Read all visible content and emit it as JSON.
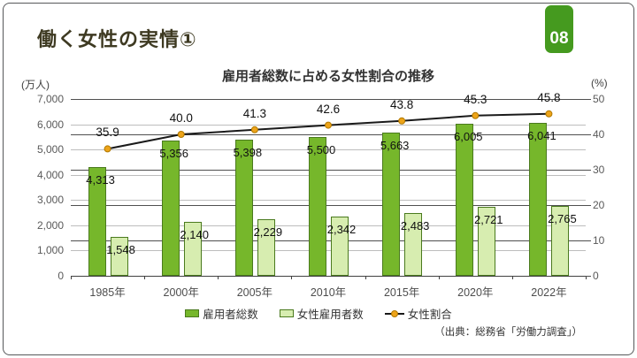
{
  "page": {
    "title": "働く女性の実情①",
    "page_number": "08",
    "source": "（出典：総務省「労働力調査」）"
  },
  "colors": {
    "badge_green": "#459a1f",
    "bar_dark_green": "#76b72b",
    "bar_light_green": "#d7edb0",
    "bar_border_green": "#4a7a1e",
    "line_black": "#1a1a1a",
    "marker_orange": "#eda41a",
    "marker_border": "#b07800",
    "grid_light": "#bdbdbd",
    "grid_dark": "#4f4f4f",
    "title_olive": "#3e3a22"
  },
  "chart_data": {
    "type": "combo-bar-line",
    "title": "雇用者総数に占める女性割合の推移",
    "categories": [
      "1985年",
      "2000年",
      "2005年",
      "2010年",
      "2015年",
      "2020年",
      "2022年"
    ],
    "series": [
      {
        "name": "雇用者総数",
        "type": "bar",
        "axis": "left",
        "fill": "#76b72b",
        "border": "#4a7a1e",
        "values": [
          4313,
          5356,
          5398,
          5500,
          5663,
          6005,
          6041
        ],
        "labels": [
          "4,313",
          "5,356",
          "5,398",
          "5,500",
          "5,663",
          "6,005",
          "6,041"
        ]
      },
      {
        "name": "女性雇用者数",
        "type": "bar",
        "axis": "left",
        "fill": "#d7edb0",
        "border": "#4a7a1e",
        "values": [
          1548,
          2140,
          2229,
          2342,
          2483,
          2721,
          2765
        ],
        "labels": [
          "1,548",
          "2,140",
          "2,229",
          "2,342",
          "2,483",
          "2,721",
          "2,765"
        ]
      },
      {
        "name": "女性割合",
        "type": "line",
        "axis": "right",
        "color": "#1a1a1a",
        "marker": "#eda41a",
        "marker_border": "#b07800",
        "values": [
          35.9,
          40.0,
          41.3,
          42.6,
          43.8,
          45.3,
          45.8
        ],
        "labels": [
          "35.9",
          "40.0",
          "41.3",
          "42.6",
          "43.8",
          "45.3",
          "45.8"
        ]
      }
    ],
    "left_axis": {
      "unit": "(万人)",
      "min": 0,
      "max": 7000,
      "step": 1000
    },
    "right_axis": {
      "unit": "(%)",
      "min": 0,
      "max": 50,
      "step": 10
    },
    "legend": [
      "雇用者総数",
      "女性雇用者数",
      "女性割合"
    ],
    "legend_position": "bottom",
    "grid": true
  }
}
